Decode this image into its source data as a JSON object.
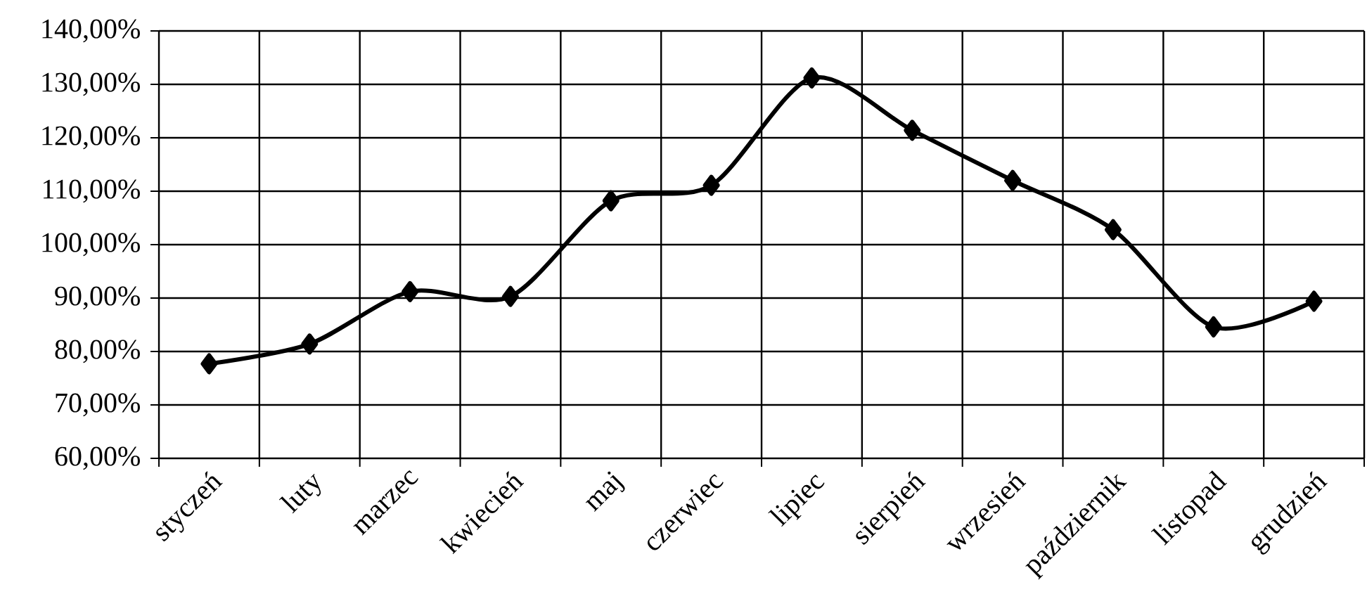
{
  "chart_data": {
    "type": "line",
    "categories": [
      "styczeń",
      "luty",
      "marzec",
      "kwiecień",
      "maj",
      "czerwiec",
      "lipiec",
      "sierpień",
      "wrzesień",
      "październik",
      "listopad",
      "grudzień"
    ],
    "series": [
      {
        "color": "#000000",
        "values": [
          77.7,
          81.4,
          91.2,
          90.3,
          108.2,
          111.1,
          131.2,
          121.4,
          112.0,
          102.8,
          84.6,
          89.4
        ]
      }
    ],
    "ylim": [
      60,
      140
    ],
    "yticks": [
      {
        "value": 60,
        "label": "60,00%"
      },
      {
        "value": 70,
        "label": "70,00%"
      },
      {
        "value": 80,
        "label": "80,00%"
      },
      {
        "value": 90,
        "label": "90,00%"
      },
      {
        "value": 100,
        "label": "100,00%"
      },
      {
        "value": 110,
        "label": "110,00%"
      },
      {
        "value": 120,
        "label": "120,00%"
      },
      {
        "value": 130,
        "label": "130,00%"
      },
      {
        "value": 140,
        "label": "140,00%"
      }
    ],
    "grid": true,
    "marker": "diamond",
    "line_style": "solid"
  }
}
